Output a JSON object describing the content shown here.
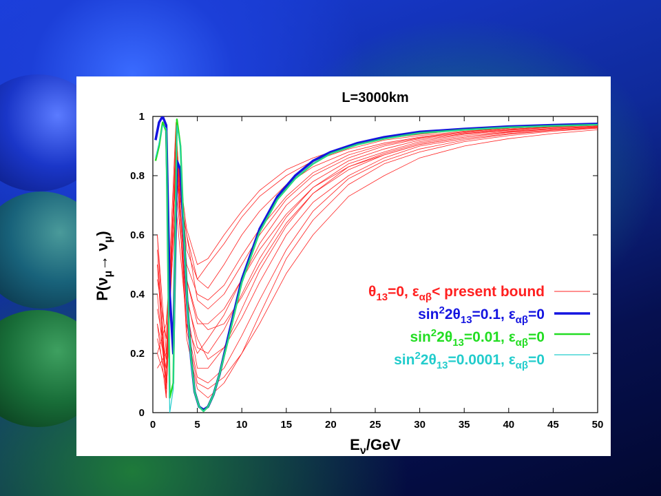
{
  "chart_data": {
    "type": "line",
    "title": "L=3000km",
    "xlabel": "Eν/GeV",
    "xlabel_parts": {
      "main": "E",
      "sub": "ν",
      "rest": "/GeV"
    },
    "ylabel": "P(νμ→ νμ)",
    "ylabel_parts": {
      "open": "P(",
      "nu": "ν",
      "mu": "μ",
      "arrow": "→ ",
      "close": ")"
    },
    "xlim": [
      0,
      50
    ],
    "ylim": [
      0,
      1
    ],
    "xticks": [
      "0",
      "5",
      "10",
      "15",
      "20",
      "25",
      "30",
      "35",
      "40",
      "45",
      "50"
    ],
    "yticks": [
      "0",
      "0.2",
      "0.4",
      "0.6",
      "0.8",
      "1"
    ],
    "grid": false,
    "legend_position": "right-middle",
    "series": [
      {
        "name": "θ13=0, εαβ< present bound",
        "legend": {
          "a": "θ",
          "a_sub": "13",
          "b": "=0, ",
          "c": "ε",
          "c_sub": "αβ",
          "d": "< present bound"
        },
        "color": "#ff2020",
        "style": "thin",
        "curves": [
          {
            "x": [
              0.5,
              1.5,
              2.6,
              3.8,
              5.0,
              6.2,
              8,
              10,
              12,
              15,
              18,
              22,
              26,
              30,
              35,
              40,
              45,
              50
            ],
            "y": [
              0.5,
              0.05,
              0.9,
              0.62,
              0.5,
              0.52,
              0.6,
              0.68,
              0.75,
              0.82,
              0.86,
              0.9,
              0.925,
              0.94,
              0.955,
              0.965,
              0.97,
              0.975
            ]
          },
          {
            "x": [
              0.5,
              1.5,
              2.6,
              3.8,
              5.0,
              6.2,
              8,
              10,
              12,
              15,
              18,
              22,
              26,
              30,
              35,
              40,
              45,
              50
            ],
            "y": [
              0.3,
              0.15,
              0.92,
              0.55,
              0.45,
              0.5,
              0.57,
              0.66,
              0.73,
              0.8,
              0.85,
              0.89,
              0.92,
              0.935,
              0.95,
              0.96,
              0.968,
              0.974
            ]
          },
          {
            "x": [
              0.5,
              1.5,
              2.6,
              3.8,
              5.0,
              6.2,
              8,
              10,
              12,
              15,
              18,
              22,
              26,
              30,
              35,
              40,
              45,
              50
            ],
            "y": [
              0.6,
              0.1,
              0.85,
              0.6,
              0.45,
              0.42,
              0.5,
              0.6,
              0.68,
              0.77,
              0.83,
              0.88,
              0.91,
              0.93,
              0.948,
              0.96,
              0.967,
              0.973
            ]
          },
          {
            "x": [
              0.5,
              1.5,
              2.6,
              3.8,
              5.0,
              6.2,
              8,
              10,
              12,
              15,
              18,
              22,
              26,
              30,
              35,
              40,
              45,
              50
            ],
            "y": [
              0.2,
              0.3,
              0.8,
              0.6,
              0.38,
              0.35,
              0.4,
              0.5,
              0.6,
              0.72,
              0.8,
              0.86,
              0.9,
              0.925,
              0.945,
              0.957,
              0.965,
              0.972
            ]
          },
          {
            "x": [
              0.5,
              1.5,
              2.6,
              3.8,
              5.0,
              6.2,
              8,
              10,
              12,
              15,
              18,
              22,
              26,
              30,
              35,
              40,
              45,
              50
            ],
            "y": [
              0.4,
              0.08,
              0.95,
              0.45,
              0.3,
              0.3,
              0.35,
              0.45,
              0.57,
              0.7,
              0.78,
              0.85,
              0.89,
              0.92,
              0.942,
              0.955,
              0.964,
              0.971
            ]
          },
          {
            "x": [
              0.5,
              1.5,
              2.6,
              3.8,
              5.0,
              6.2,
              8,
              10,
              12,
              15,
              18,
              22,
              26,
              30,
              35,
              40,
              45,
              50
            ],
            "y": [
              0.15,
              0.2,
              0.9,
              0.4,
              0.22,
              0.2,
              0.28,
              0.4,
              0.52,
              0.66,
              0.76,
              0.84,
              0.88,
              0.915,
              0.94,
              0.953,
              0.963,
              0.97
            ]
          },
          {
            "x": [
              0.5,
              1.5,
              2.6,
              3.8,
              5.0,
              6.2,
              8,
              10,
              12,
              15,
              18,
              22,
              26,
              30,
              35,
              40,
              45,
              50
            ],
            "y": [
              0.55,
              0.05,
              0.9,
              0.35,
              0.15,
              0.15,
              0.22,
              0.35,
              0.48,
              0.63,
              0.74,
              0.83,
              0.875,
              0.91,
              0.935,
              0.95,
              0.96,
              0.968
            ]
          },
          {
            "x": [
              0.5,
              1.5,
              2.6,
              3.8,
              5.0,
              6.2,
              8,
              10,
              12,
              15,
              18,
              22,
              26,
              30,
              35,
              40,
              45,
              50
            ],
            "y": [
              0.25,
              0.12,
              0.85,
              0.3,
              0.12,
              0.1,
              0.15,
              0.26,
              0.38,
              0.55,
              0.68,
              0.79,
              0.85,
              0.89,
              0.92,
              0.94,
              0.953,
              0.962
            ]
          },
          {
            "x": [
              0.5,
              1.5,
              2.6,
              3.8,
              5.0,
              6.2,
              8,
              10,
              12,
              15,
              18,
              22,
              26,
              30,
              35,
              40,
              45,
              50
            ],
            "y": [
              0.45,
              0.25,
              0.98,
              0.28,
              0.1,
              0.08,
              0.12,
              0.2,
              0.3,
              0.47,
              0.6,
              0.73,
              0.8,
              0.86,
              0.9,
              0.925,
              0.942,
              0.955
            ]
          },
          {
            "x": [
              0.5,
              1.5,
              2.6,
              3.8,
              5.0,
              6.2,
              8,
              10,
              12,
              15,
              18,
              22,
              26,
              30,
              35,
              40,
              45,
              50
            ],
            "y": [
              0.3,
              0.05,
              0.88,
              0.25,
              0.08,
              0.05,
              0.1,
              0.2,
              0.33,
              0.52,
              0.65,
              0.77,
              0.84,
              0.88,
              0.915,
              0.935,
              0.95,
              0.96
            ]
          },
          {
            "x": [
              0.5,
              1.5,
              2.6,
              3.8,
              5.0,
              6.2,
              8,
              10,
              12,
              15,
              18,
              22,
              26,
              30,
              35,
              40,
              45,
              50
            ],
            "y": [
              0.35,
              0.18,
              0.82,
              0.45,
              0.32,
              0.28,
              0.3,
              0.39,
              0.5,
              0.64,
              0.74,
              0.82,
              0.87,
              0.905,
              0.93,
              0.948,
              0.958,
              0.966
            ]
          },
          {
            "x": [
              0.5,
              1.5,
              2.6,
              3.8,
              5.0,
              6.2,
              8,
              10,
              12,
              15,
              18,
              22,
              26,
              30,
              35,
              40,
              45,
              50
            ],
            "y": [
              0.5,
              0.1,
              0.9,
              0.5,
              0.4,
              0.38,
              0.43,
              0.53,
              0.62,
              0.73,
              0.81,
              0.87,
              0.905,
              0.928,
              0.948,
              0.96,
              0.967,
              0.973
            ]
          },
          {
            "x": [
              0.5,
              1.5,
              2.6,
              3.8,
              5.0,
              6.2,
              8,
              10,
              12,
              15,
              18,
              22,
              26,
              30,
              35,
              40,
              45,
              50
            ],
            "y": [
              0.6,
              0.2,
              0.7,
              0.3,
              0.2,
              0.25,
              0.33,
              0.45,
              0.55,
              0.67,
              0.76,
              0.83,
              0.87,
              0.905,
              0.93,
              0.946,
              0.957,
              0.965
            ]
          },
          {
            "x": [
              0.5,
              1.5,
              2.6,
              3.8,
              5.0,
              6.2,
              8,
              10,
              12,
              15,
              18,
              22,
              26,
              30,
              35,
              40,
              45,
              50
            ],
            "y": [
              0.2,
              0.1,
              0.76,
              0.38,
              0.25,
              0.18,
              0.22,
              0.32,
              0.44,
              0.6,
              0.71,
              0.8,
              0.86,
              0.9,
              0.925,
              0.942,
              0.954,
              0.963
            ]
          }
        ]
      },
      {
        "name": "sin22θ13=0.1, εαβ=0",
        "legend": {
          "a": "sin",
          "a_sup": "2",
          "b": "2",
          "c": "θ",
          "c_sub": "13",
          "d": "=0.1, ",
          "e": "ε",
          "e_sub": "αβ",
          "f": "=0"
        },
        "color": "#1414e0",
        "style": "thick",
        "x": [
          0.3,
          0.7,
          1.1,
          1.5,
          1.9,
          2.3,
          2.7,
          3.1,
          3.5,
          3.9,
          4.3,
          4.7,
          5.2,
          5.7,
          6.2,
          6.8,
          7.5,
          8.5,
          10,
          12,
          14,
          16,
          18,
          20,
          23,
          26,
          30,
          35,
          40,
          45,
          50
        ],
        "y": [
          0.92,
          0.98,
          1.0,
          0.97,
          0.4,
          0.2,
          0.85,
          0.82,
          0.6,
          0.35,
          0.18,
          0.07,
          0.02,
          0.01,
          0.02,
          0.06,
          0.13,
          0.26,
          0.45,
          0.62,
          0.73,
          0.8,
          0.85,
          0.88,
          0.91,
          0.93,
          0.948,
          0.958,
          0.966,
          0.971,
          0.975
        ]
      },
      {
        "name": "sin22θ13=0.01, εαβ=0",
        "legend": {
          "a": "sin",
          "a_sup": "2",
          "b": "2",
          "c": "θ",
          "c_sub": "13",
          "d": "=0.01, ",
          "e": "ε",
          "e_sub": "αβ",
          "f": "=0"
        },
        "color": "#22dd22",
        "style": "medium",
        "x": [
          0.3,
          0.7,
          1.1,
          1.5,
          1.9,
          2.3,
          2.7,
          3.1,
          3.5,
          3.9,
          4.3,
          4.7,
          5.2,
          5.7,
          6.2,
          6.8,
          7.5,
          8.5,
          10,
          12,
          14,
          16,
          18,
          20,
          23,
          26,
          30,
          35,
          40,
          45,
          50
        ],
        "y": [
          0.85,
          0.9,
          0.98,
          0.95,
          0.05,
          0.1,
          0.99,
          0.9,
          0.6,
          0.35,
          0.18,
          0.07,
          0.02,
          0.005,
          0.02,
          0.06,
          0.13,
          0.25,
          0.44,
          0.61,
          0.72,
          0.79,
          0.84,
          0.875,
          0.905,
          0.925,
          0.944,
          0.955,
          0.963,
          0.968,
          0.972
        ]
      },
      {
        "name": "sin22θ13=0.0001, εαβ=0",
        "legend": {
          "a": "sin",
          "a_sup": "2",
          "b": "2",
          "c": "θ",
          "c_sub": "13",
          "d": "=0.0001, ",
          "e": "ε",
          "e_sub": "αβ",
          "f": "=0"
        },
        "color": "#22cccc",
        "style": "thin",
        "x": [
          0.3,
          0.7,
          1.1,
          1.5,
          1.9,
          2.3,
          2.7,
          3.1,
          3.5,
          3.9,
          4.3,
          4.7,
          5.2,
          5.7,
          6.2,
          6.8,
          7.5,
          8.5,
          10,
          12,
          14,
          16,
          18,
          20,
          23,
          26,
          30,
          35,
          40,
          45,
          50
        ],
        "y": [
          0.86,
          0.91,
          0.97,
          0.96,
          0.0,
          0.08,
          0.97,
          0.9,
          0.58,
          0.34,
          0.17,
          0.07,
          0.02,
          0.005,
          0.02,
          0.06,
          0.13,
          0.25,
          0.44,
          0.61,
          0.72,
          0.79,
          0.84,
          0.875,
          0.905,
          0.925,
          0.944,
          0.955,
          0.963,
          0.968,
          0.972
        ]
      }
    ]
  }
}
